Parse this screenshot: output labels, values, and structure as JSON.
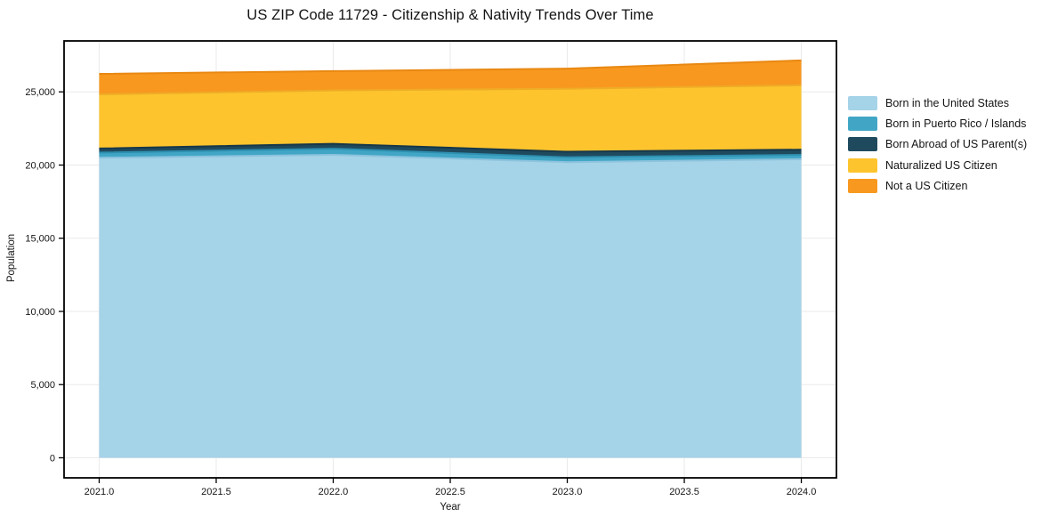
{
  "page": {
    "background": "#ffffff"
  },
  "styles": {
    "grid_color": "#eaeaea",
    "frame_color": "#000000",
    "tick_color": "#000000",
    "text_color": "#141414"
  },
  "chart_data": {
    "type": "area",
    "stacked": true,
    "title": "US ZIP Code 11729 - Citizenship & Nativity Trends Over Time",
    "xlabel": "Year",
    "ylabel": "Population",
    "x": [
      2021,
      2022,
      2023,
      2024
    ],
    "series": [
      {
        "name": "Born in the United States",
        "color": "#A5D3E8",
        "edge": "#8CC3DD",
        "values": [
          20500,
          20700,
          20200,
          20400
        ]
      },
      {
        "name": "Born in Puerto Rico / Islands",
        "color": "#41A6C6",
        "edge": "#2E8FB0",
        "values": [
          350,
          420,
          330,
          300
        ]
      },
      {
        "name": "Born Abroad of US Parent(s)",
        "color": "#1F4A5E",
        "edge": "#16374A",
        "values": [
          280,
          330,
          380,
          350
        ]
      },
      {
        "name": "Naturalized US Citizen",
        "color": "#FDC42D",
        "edge": "#EFAC26",
        "values": [
          3700,
          3650,
          4300,
          4400
        ]
      },
      {
        "name": "Not a US Citizen",
        "color": "#F8981F",
        "edge": "#E98812",
        "values": [
          1400,
          1320,
          1380,
          1700
        ]
      }
    ],
    "totals": [
      26230,
      26420,
      26590,
      27150
    ],
    "xticks": [
      2021.0,
      2021.5,
      2022.0,
      2022.5,
      2023.0,
      2023.5,
      2024.0
    ],
    "yticks": [
      0,
      5000,
      10000,
      15000,
      20000,
      25000
    ],
    "xlim": [
      2020.85,
      2024.15
    ],
    "ylim": [
      -1370,
      28480
    ],
    "grid": true,
    "legend_position": "right-outside"
  }
}
